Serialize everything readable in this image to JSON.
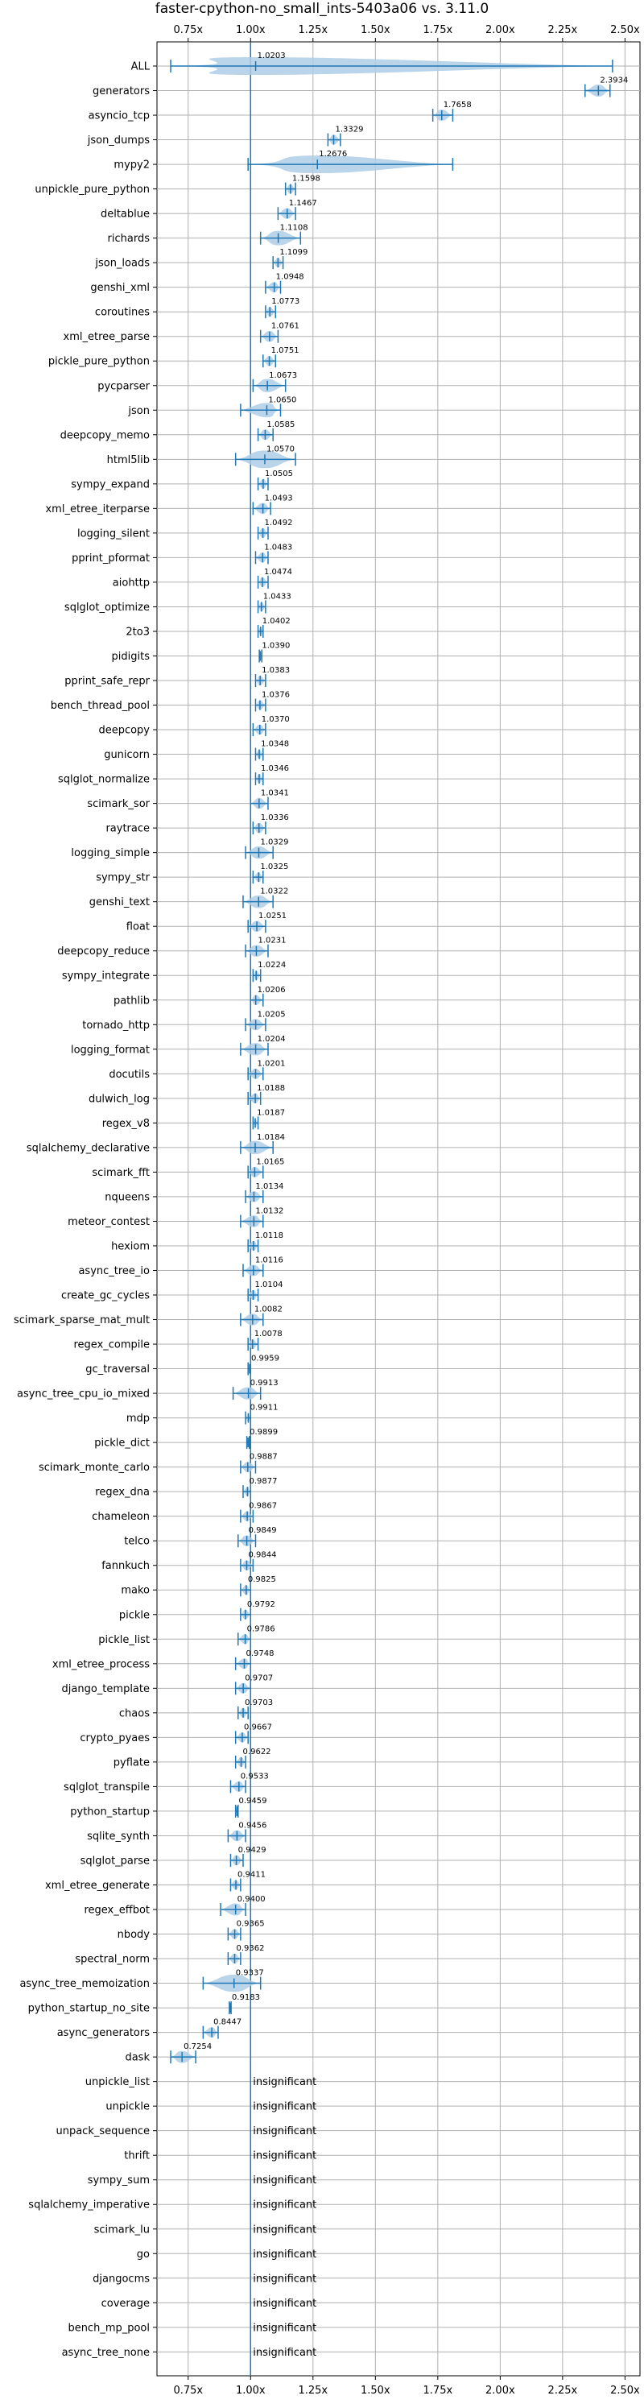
{
  "chart_data": {
    "type": "violin",
    "title": "faster-cpython-no_small_ints-5403a06 vs. 3.11.0",
    "xlabel": "",
    "ylabel": "",
    "xlim": [
      0.625,
      2.56
    ],
    "xticks": [
      0.75,
      1.0,
      1.25,
      1.5,
      1.75,
      2.0,
      2.25,
      2.5
    ],
    "xtick_labels": [
      "0.75x",
      "1.00x",
      "1.25x",
      "1.50x",
      "1.75x",
      "2.00x",
      "2.25x",
      "2.50x"
    ],
    "reference_line": 1.0,
    "grid": true,
    "insignificant_label": "insignificant",
    "benchmarks": [
      {
        "name": "ALL",
        "label": "1.0203",
        "mean": 1.0203,
        "min": 0.68,
        "max": 2.45
      },
      {
        "name": "generators",
        "label": "2.3934",
        "mean": 2.3934,
        "min": 2.34,
        "max": 2.44
      },
      {
        "name": "asyncio_tcp",
        "label": "1.7658",
        "mean": 1.7658,
        "min": 1.73,
        "max": 1.81
      },
      {
        "name": "json_dumps",
        "label": "1.3329",
        "mean": 1.3329,
        "min": 1.31,
        "max": 1.36
      },
      {
        "name": "mypy2",
        "label": "1.2676",
        "mean": 1.2676,
        "min": 0.99,
        "max": 1.81
      },
      {
        "name": "unpickle_pure_python",
        "label": "1.1598",
        "mean": 1.1598,
        "min": 1.14,
        "max": 1.18
      },
      {
        "name": "deltablue",
        "label": "1.1467",
        "mean": 1.1467,
        "min": 1.11,
        "max": 1.18
      },
      {
        "name": "richards",
        "label": "1.1108",
        "mean": 1.1108,
        "min": 1.04,
        "max": 1.2
      },
      {
        "name": "json_loads",
        "label": "1.1099",
        "mean": 1.1099,
        "min": 1.09,
        "max": 1.13
      },
      {
        "name": "genshi_xml",
        "label": "1.0948",
        "mean": 1.0948,
        "min": 1.06,
        "max": 1.12
      },
      {
        "name": "coroutines",
        "label": "1.0773",
        "mean": 1.0773,
        "min": 1.06,
        "max": 1.1
      },
      {
        "name": "xml_etree_parse",
        "label": "1.0761",
        "mean": 1.0761,
        "min": 1.04,
        "max": 1.11
      },
      {
        "name": "pickle_pure_python",
        "label": "1.0751",
        "mean": 1.0751,
        "min": 1.05,
        "max": 1.1
      },
      {
        "name": "pycparser",
        "label": "1.0673",
        "mean": 1.0673,
        "min": 1.01,
        "max": 1.14
      },
      {
        "name": "json",
        "label": "1.0650",
        "mean": 1.065,
        "min": 0.96,
        "max": 1.12
      },
      {
        "name": "deepcopy_memo",
        "label": "1.0585",
        "mean": 1.0585,
        "min": 1.03,
        "max": 1.09
      },
      {
        "name": "html5lib",
        "label": "1.0570",
        "mean": 1.057,
        "min": 0.94,
        "max": 1.18
      },
      {
        "name": "sympy_expand",
        "label": "1.0505",
        "mean": 1.0505,
        "min": 1.03,
        "max": 1.07
      },
      {
        "name": "xml_etree_iterparse",
        "label": "1.0493",
        "mean": 1.0493,
        "min": 1.01,
        "max": 1.08
      },
      {
        "name": "logging_silent",
        "label": "1.0492",
        "mean": 1.0492,
        "min": 1.03,
        "max": 1.07
      },
      {
        "name": "pprint_pformat",
        "label": "1.0483",
        "mean": 1.0483,
        "min": 1.02,
        "max": 1.07
      },
      {
        "name": "aiohttp",
        "label": "1.0474",
        "mean": 1.0474,
        "min": 1.03,
        "max": 1.07
      },
      {
        "name": "sqlglot_optimize",
        "label": "1.0433",
        "mean": 1.0433,
        "min": 1.03,
        "max": 1.06
      },
      {
        "name": "2to3",
        "label": "1.0402",
        "mean": 1.0402,
        "min": 1.03,
        "max": 1.05
      },
      {
        "name": "pidigits",
        "label": "1.0390",
        "mean": 1.039,
        "min": 1.035,
        "max": 1.045
      },
      {
        "name": "pprint_safe_repr",
        "label": "1.0383",
        "mean": 1.0383,
        "min": 1.02,
        "max": 1.06
      },
      {
        "name": "bench_thread_pool",
        "label": "1.0376",
        "mean": 1.0376,
        "min": 1.02,
        "max": 1.06
      },
      {
        "name": "deepcopy",
        "label": "1.0370",
        "mean": 1.037,
        "min": 1.01,
        "max": 1.06
      },
      {
        "name": "gunicorn",
        "label": "1.0348",
        "mean": 1.0348,
        "min": 1.02,
        "max": 1.05
      },
      {
        "name": "sqlglot_normalize",
        "label": "1.0346",
        "mean": 1.0346,
        "min": 1.02,
        "max": 1.05
      },
      {
        "name": "scimark_sor",
        "label": "1.0341",
        "mean": 1.0341,
        "min": 1.0,
        "max": 1.07
      },
      {
        "name": "raytrace",
        "label": "1.0336",
        "mean": 1.0336,
        "min": 1.01,
        "max": 1.06
      },
      {
        "name": "logging_simple",
        "label": "1.0329",
        "mean": 1.0329,
        "min": 0.98,
        "max": 1.09
      },
      {
        "name": "sympy_str",
        "label": "1.0325",
        "mean": 1.0325,
        "min": 1.01,
        "max": 1.05
      },
      {
        "name": "genshi_text",
        "label": "1.0322",
        "mean": 1.0322,
        "min": 0.97,
        "max": 1.09
      },
      {
        "name": "float",
        "label": "1.0251",
        "mean": 1.0251,
        "min": 0.99,
        "max": 1.06
      },
      {
        "name": "deepcopy_reduce",
        "label": "1.0231",
        "mean": 1.0231,
        "min": 0.98,
        "max": 1.07
      },
      {
        "name": "sympy_integrate",
        "label": "1.0224",
        "mean": 1.0224,
        "min": 1.01,
        "max": 1.04
      },
      {
        "name": "pathlib",
        "label": "1.0206",
        "mean": 1.0206,
        "min": 1.0,
        "max": 1.05
      },
      {
        "name": "tornado_http",
        "label": "1.0205",
        "mean": 1.0205,
        "min": 0.98,
        "max": 1.06
      },
      {
        "name": "logging_format",
        "label": "1.0204",
        "mean": 1.0204,
        "min": 0.96,
        "max": 1.07
      },
      {
        "name": "docutils",
        "label": "1.0201",
        "mean": 1.0201,
        "min": 0.99,
        "max": 1.05
      },
      {
        "name": "dulwich_log",
        "label": "1.0188",
        "mean": 1.0188,
        "min": 0.99,
        "max": 1.04
      },
      {
        "name": "regex_v8",
        "label": "1.0187",
        "mean": 1.0187,
        "min": 1.01,
        "max": 1.03
      },
      {
        "name": "sqlalchemy_declarative",
        "label": "1.0184",
        "mean": 1.0184,
        "min": 0.96,
        "max": 1.09
      },
      {
        "name": "scimark_fft",
        "label": "1.0165",
        "mean": 1.0165,
        "min": 0.99,
        "max": 1.05
      },
      {
        "name": "nqueens",
        "label": "1.0134",
        "mean": 1.0134,
        "min": 0.98,
        "max": 1.05
      },
      {
        "name": "meteor_contest",
        "label": "1.0132",
        "mean": 1.0132,
        "min": 0.96,
        "max": 1.05
      },
      {
        "name": "hexiom",
        "label": "1.0118",
        "mean": 1.0118,
        "min": 0.99,
        "max": 1.03
      },
      {
        "name": "async_tree_io",
        "label": "1.0116",
        "mean": 1.0116,
        "min": 0.97,
        "max": 1.05
      },
      {
        "name": "create_gc_cycles",
        "label": "1.0104",
        "mean": 1.0104,
        "min": 0.99,
        "max": 1.03
      },
      {
        "name": "scimark_sparse_mat_mult",
        "label": "1.0082",
        "mean": 1.0082,
        "min": 0.96,
        "max": 1.05
      },
      {
        "name": "regex_compile",
        "label": "1.0078",
        "mean": 1.0078,
        "min": 0.99,
        "max": 1.03
      },
      {
        "name": "gc_traversal",
        "label": "0.9959",
        "mean": 0.9959,
        "min": 0.99,
        "max": 1.0
      },
      {
        "name": "async_tree_cpu_io_mixed",
        "label": "0.9913",
        "mean": 0.9913,
        "min": 0.93,
        "max": 1.04
      },
      {
        "name": "mdp",
        "label": "0.9911",
        "mean": 0.9911,
        "min": 0.98,
        "max": 1.0
      },
      {
        "name": "pickle_dict",
        "label": "0.9899",
        "mean": 0.9899,
        "min": 0.985,
        "max": 0.995
      },
      {
        "name": "scimark_monte_carlo",
        "label": "0.9887",
        "mean": 0.9887,
        "min": 0.96,
        "max": 1.02
      },
      {
        "name": "regex_dna",
        "label": "0.9877",
        "mean": 0.9877,
        "min": 0.97,
        "max": 1.0
      },
      {
        "name": "chameleon",
        "label": "0.9867",
        "mean": 0.9867,
        "min": 0.96,
        "max": 1.01
      },
      {
        "name": "telco",
        "label": "0.9849",
        "mean": 0.9849,
        "min": 0.95,
        "max": 1.02
      },
      {
        "name": "fannkuch",
        "label": "0.9844",
        "mean": 0.9844,
        "min": 0.96,
        "max": 1.01
      },
      {
        "name": "mako",
        "label": "0.9825",
        "mean": 0.9825,
        "min": 0.96,
        "max": 1.0
      },
      {
        "name": "pickle",
        "label": "0.9792",
        "mean": 0.9792,
        "min": 0.96,
        "max": 1.0
      },
      {
        "name": "pickle_list",
        "label": "0.9786",
        "mean": 0.9786,
        "min": 0.95,
        "max": 1.0
      },
      {
        "name": "xml_etree_process",
        "label": "0.9748",
        "mean": 0.9748,
        "min": 0.94,
        "max": 1.0
      },
      {
        "name": "django_template",
        "label": "0.9707",
        "mean": 0.9707,
        "min": 0.94,
        "max": 1.0
      },
      {
        "name": "chaos",
        "label": "0.9703",
        "mean": 0.9703,
        "min": 0.95,
        "max": 0.99
      },
      {
        "name": "crypto_pyaes",
        "label": "0.9667",
        "mean": 0.9667,
        "min": 0.94,
        "max": 0.99
      },
      {
        "name": "pyflate",
        "label": "0.9622",
        "mean": 0.9622,
        "min": 0.94,
        "max": 0.98
      },
      {
        "name": "sqlglot_transpile",
        "label": "0.9533",
        "mean": 0.9533,
        "min": 0.92,
        "max": 0.98
      },
      {
        "name": "python_startup",
        "label": "0.9459",
        "mean": 0.9459,
        "min": 0.94,
        "max": 0.95
      },
      {
        "name": "sqlite_synth",
        "label": "0.9456",
        "mean": 0.9456,
        "min": 0.91,
        "max": 0.98
      },
      {
        "name": "sqlglot_parse",
        "label": "0.9429",
        "mean": 0.9429,
        "min": 0.92,
        "max": 0.97
      },
      {
        "name": "xml_etree_generate",
        "label": "0.9411",
        "mean": 0.9411,
        "min": 0.92,
        "max": 0.96
      },
      {
        "name": "regex_effbot",
        "label": "0.9400",
        "mean": 0.94,
        "min": 0.88,
        "max": 0.98
      },
      {
        "name": "nbody",
        "label": "0.9365",
        "mean": 0.9365,
        "min": 0.91,
        "max": 0.96
      },
      {
        "name": "spectral_norm",
        "label": "0.9362",
        "mean": 0.9362,
        "min": 0.91,
        "max": 0.96
      },
      {
        "name": "async_tree_memoization",
        "label": "0.9337",
        "mean": 0.9337,
        "min": 0.81,
        "max": 1.04
      },
      {
        "name": "python_startup_no_site",
        "label": "0.9183",
        "mean": 0.9183,
        "min": 0.915,
        "max": 0.922
      },
      {
        "name": "async_generators",
        "label": "0.8447",
        "mean": 0.8447,
        "min": 0.81,
        "max": 0.87
      },
      {
        "name": "dask",
        "label": "0.7254",
        "mean": 0.7254,
        "min": 0.68,
        "max": 0.78
      },
      {
        "name": "unpickle_list",
        "label": "insignificant",
        "insignificant": true
      },
      {
        "name": "unpickle",
        "label": "insignificant",
        "insignificant": true
      },
      {
        "name": "unpack_sequence",
        "label": "insignificant",
        "insignificant": true
      },
      {
        "name": "thrift",
        "label": "insignificant",
        "insignificant": true
      },
      {
        "name": "sympy_sum",
        "label": "insignificant",
        "insignificant": true
      },
      {
        "name": "sqlalchemy_imperative",
        "label": "insignificant",
        "insignificant": true
      },
      {
        "name": "scimark_lu",
        "label": "insignificant",
        "insignificant": true
      },
      {
        "name": "go",
        "label": "insignificant",
        "insignificant": true
      },
      {
        "name": "djangocms",
        "label": "insignificant",
        "insignificant": true
      },
      {
        "name": "coverage",
        "label": "insignificant",
        "insignificant": true
      },
      {
        "name": "bench_mp_pool",
        "label": "insignificant",
        "insignificant": true
      },
      {
        "name": "async_tree_none",
        "label": "insignificant",
        "insignificant": true
      }
    ],
    "colors": {
      "line": "#1f77b4",
      "violin": "#aecde6",
      "grid": "#b0b0b0"
    }
  }
}
